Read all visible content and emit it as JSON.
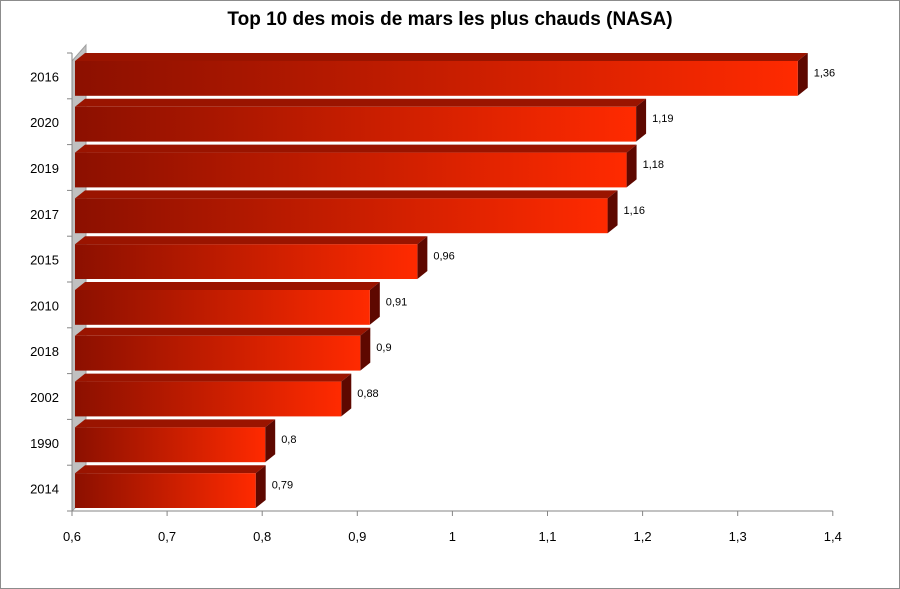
{
  "chart_data": {
    "type": "bar",
    "orientation": "horizontal",
    "style": "3d",
    "title": "Top 10 des mois de mars les plus chauds (NASA)",
    "categories": [
      "2016",
      "2020",
      "2019",
      "2017",
      "2015",
      "2010",
      "2018",
      "2002",
      "1990",
      "2014"
    ],
    "values": [
      1.36,
      1.19,
      1.18,
      1.16,
      0.96,
      0.91,
      0.9,
      0.88,
      0.8,
      0.79
    ],
    "value_labels": [
      "1,36",
      "1,19",
      "1,18",
      "1,16",
      "0,96",
      "0,91",
      "0,9",
      "0,88",
      "0,8",
      "0,79"
    ],
    "xlim": [
      0.6,
      1.4
    ],
    "x_ticks": [
      "0,6",
      "0,7",
      "0,8",
      "0,9",
      "1",
      "1,1",
      "1,2",
      "1,3",
      "1,4"
    ],
    "xlabel": "",
    "ylabel": "",
    "grid": false,
    "legend": "none",
    "colors": {
      "bar_dark": "#8c1000",
      "bar_light": "#ff2a00",
      "bar_top": "#9a1400",
      "bar_side": "#5e0800",
      "wall": "#c0c0c0"
    }
  }
}
